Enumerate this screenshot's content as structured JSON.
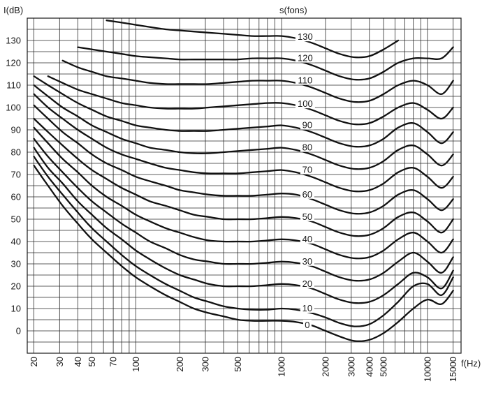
{
  "chart_data": {
    "type": "line",
    "title": "",
    "ylabel": "I(dB)",
    "xlabel": "f(Hz)",
    "series_label": "s(fons)",
    "xscale": "log",
    "xlim": [
      18,
      17000
    ],
    "ylim": [
      -10,
      140
    ],
    "grid": true,
    "yticks": [
      0,
      10,
      20,
      30,
      40,
      50,
      60,
      70,
      80,
      90,
      100,
      110,
      120,
      130
    ],
    "xticks": [
      20,
      30,
      40,
      50,
      70,
      100,
      200,
      300,
      500,
      1000,
      2000,
      3000,
      4000,
      5000,
      10000,
      15000
    ],
    "series": [
      {
        "name": "0",
        "x": [
          20,
          25,
          31.5,
          40,
          50,
          63,
          80,
          100,
          125,
          160,
          200,
          250,
          315,
          400,
          500,
          630,
          800,
          1000,
          1250,
          1600,
          2000,
          2500,
          3150,
          4000,
          5000,
          6300,
          8000,
          10000,
          12500,
          15000
        ],
        "y": [
          74,
          65,
          56,
          48,
          41,
          35,
          29,
          24,
          20,
          16,
          13,
          10,
          8,
          6.5,
          5,
          4.5,
          4.5,
          4.5,
          4,
          2.5,
          0,
          -2.5,
          -4.5,
          -4,
          -1,
          4,
          10,
          14,
          12,
          18
        ]
      },
      {
        "name": "10",
        "x": [
          20,
          25,
          31.5,
          40,
          50,
          63,
          80,
          100,
          125,
          160,
          200,
          250,
          315,
          400,
          500,
          630,
          800,
          1000,
          1250,
          1600,
          2000,
          2500,
          3150,
          4000,
          5000,
          6300,
          8000,
          10000,
          12500,
          15000
        ],
        "y": [
          78,
          69,
          61,
          53,
          46,
          40,
          34,
          29,
          25,
          21,
          18,
          15,
          13,
          11,
          10,
          9.5,
          9.5,
          10,
          9.5,
          8,
          6,
          3.5,
          2,
          3,
          7,
          13,
          20,
          21,
          16,
          24
        ]
      },
      {
        "name": "20",
        "x": [
          20,
          25,
          31.5,
          40,
          50,
          63,
          80,
          100,
          125,
          160,
          200,
          250,
          315,
          400,
          500,
          630,
          800,
          1000,
          1250,
          1600,
          2000,
          2500,
          3150,
          4000,
          5000,
          6300,
          8000,
          10000,
          12500,
          15000
        ],
        "y": [
          82,
          73,
          66,
          58,
          52,
          46,
          41,
          36,
          32,
          28,
          25,
          23,
          21,
          20,
          20,
          20,
          20.5,
          21,
          20.5,
          19,
          16.5,
          14,
          12.5,
          13,
          16,
          21,
          26,
          24,
          19,
          27
        ]
      },
      {
        "name": "30",
        "x": [
          20,
          25,
          31.5,
          40,
          50,
          63,
          80,
          100,
          125,
          160,
          200,
          250,
          315,
          400,
          500,
          630,
          800,
          1000,
          1250,
          1600,
          2000,
          2500,
          3150,
          4000,
          5000,
          6300,
          8000,
          10000,
          12500,
          15000
        ],
        "y": [
          86,
          78,
          71,
          64,
          58,
          53,
          48,
          44,
          40,
          37,
          34,
          32,
          31,
          30,
          30,
          30,
          30.5,
          31,
          30.5,
          29,
          26.5,
          24,
          22.5,
          23,
          26,
          31,
          35,
          31,
          26,
          33
        ]
      },
      {
        "name": "40",
        "x": [
          20,
          25,
          31.5,
          40,
          50,
          63,
          80,
          100,
          125,
          160,
          200,
          250,
          315,
          400,
          500,
          630,
          800,
          1000,
          1250,
          1600,
          2000,
          2500,
          3150,
          4000,
          5000,
          6300,
          8000,
          10000,
          12500,
          15000
        ],
        "y": [
          91,
          84,
          77,
          71,
          65,
          60,
          56,
          52,
          49,
          46,
          44,
          42,
          40.5,
          40,
          40,
          40,
          40.5,
          41,
          40.5,
          39,
          36.5,
          34,
          32.5,
          33,
          36,
          41,
          44,
          40,
          35,
          41
        ]
      },
      {
        "name": "50",
        "x": [
          20,
          25,
          31.5,
          40,
          50,
          63,
          80,
          100,
          125,
          160,
          200,
          250,
          315,
          400,
          500,
          630,
          800,
          1000,
          1250,
          1600,
          2000,
          2500,
          3150,
          4000,
          5000,
          6300,
          8000,
          10000,
          12500,
          15000
        ],
        "y": [
          95,
          89,
          83,
          77,
          72,
          68,
          64,
          61,
          58,
          56,
          54,
          52,
          51,
          50,
          50,
          50,
          50.5,
          51,
          50.5,
          49,
          46.5,
          44,
          42.5,
          43,
          46,
          51,
          53,
          49,
          44,
          50
        ]
      },
      {
        "name": "60",
        "x": [
          20,
          25,
          31.5,
          40,
          50,
          63,
          80,
          100,
          125,
          160,
          200,
          250,
          315,
          400,
          500,
          630,
          800,
          1000,
          1250,
          1600,
          2000,
          2500,
          3150,
          4000,
          5000,
          6300,
          8000,
          10000,
          12500,
          15000
        ],
        "y": [
          101,
          95,
          89,
          84,
          79,
          75,
          72,
          69,
          67,
          65,
          63,
          62,
          61,
          60.5,
          60.5,
          60.5,
          61,
          61.5,
          61,
          59,
          56.5,
          54,
          52.5,
          53,
          56,
          61,
          63,
          59,
          54,
          59
        ]
      },
      {
        "name": "70",
        "x": [
          20,
          25,
          31.5,
          40,
          50,
          63,
          80,
          100,
          125,
          160,
          200,
          250,
          315,
          400,
          500,
          630,
          800,
          1000,
          1250,
          1600,
          2000,
          2500,
          3150,
          4000,
          5000,
          6300,
          8000,
          10000,
          12500,
          15000
        ],
        "y": [
          106,
          100,
          95,
          90,
          86,
          82,
          79,
          77,
          75,
          73,
          72,
          71,
          70.5,
          70.5,
          70.5,
          71,
          71.5,
          72,
          71,
          69,
          66.5,
          64,
          62.5,
          63,
          66,
          71,
          73,
          69,
          64,
          69
        ]
      },
      {
        "name": "80",
        "x": [
          20,
          25,
          31.5,
          40,
          50,
          63,
          80,
          100,
          125,
          160,
          200,
          250,
          315,
          400,
          500,
          630,
          800,
          1000,
          1250,
          1600,
          2000,
          2500,
          3150,
          4000,
          5000,
          6300,
          8000,
          10000,
          12500,
          15000
        ],
        "y": [
          110,
          105,
          100,
          96,
          92,
          89,
          86,
          84,
          82,
          81,
          80,
          79.5,
          79.5,
          80,
          80.5,
          81,
          81.5,
          82,
          81,
          79,
          76.5,
          74,
          72.5,
          73,
          76,
          81,
          83,
          79,
          74,
          79
        ]
      },
      {
        "name": "90",
        "x": [
          20,
          25,
          31.5,
          40,
          50,
          63,
          80,
          100,
          125,
          160,
          200,
          250,
          315,
          400,
          500,
          630,
          800,
          1000,
          1250,
          1600,
          2000,
          2500,
          3150,
          4000,
          5000,
          6300,
          8000,
          10000,
          12500,
          15000
        ],
        "y": [
          114,
          110,
          106,
          102,
          99,
          96,
          94,
          92,
          91,
          90,
          89.5,
          89.5,
          89.5,
          90,
          90.5,
          91,
          91.5,
          92,
          91,
          89,
          86.5,
          84,
          82.5,
          83,
          86,
          91,
          93,
          89,
          84,
          89
        ]
      },
      {
        "name": "100",
        "x": [
          25,
          31.5,
          40,
          50,
          63,
          80,
          100,
          125,
          160,
          200,
          250,
          315,
          400,
          500,
          630,
          800,
          1000,
          1250,
          1600,
          2000,
          2500,
          3150,
          4000,
          5000,
          6300,
          8000,
          10000,
          12500,
          15000
        ],
        "y": [
          114,
          111,
          108,
          106,
          104,
          102,
          101,
          100,
          99.5,
          99.5,
          99.5,
          100,
          100.5,
          101,
          101.5,
          102,
          102,
          101,
          99,
          96.5,
          94,
          92.5,
          93,
          96,
          100,
          102,
          99,
          95,
          100
        ]
      },
      {
        "name": "110",
        "x": [
          31.5,
          40,
          50,
          63,
          80,
          100,
          125,
          160,
          200,
          250,
          315,
          400,
          500,
          630,
          800,
          1000,
          1250,
          1600,
          2000,
          2500,
          3150,
          4000,
          5000,
          6300,
          8000,
          10000,
          12500,
          15000
        ],
        "y": [
          121,
          118,
          116,
          114,
          113,
          112,
          111,
          110.5,
          110.5,
          110.5,
          110.5,
          111,
          111.5,
          112,
          112,
          112,
          111,
          109,
          106.5,
          104,
          102.5,
          103,
          106,
          110,
          112,
          110,
          106,
          112
        ]
      },
      {
        "name": "120",
        "x": [
          40,
          50,
          63,
          80,
          100,
          125,
          160,
          200,
          250,
          315,
          400,
          500,
          630,
          800,
          1000,
          1250,
          1600,
          2000,
          2500,
          3150,
          4000,
          5000,
          6300,
          8000,
          10000,
          12500,
          15000
        ],
        "y": [
          127,
          126,
          125,
          124,
          123,
          122.5,
          122,
          121.5,
          121.5,
          121.5,
          121.5,
          121.5,
          122,
          122,
          122,
          121,
          119,
          116.5,
          114,
          112.5,
          113,
          116,
          120,
          122,
          122,
          122,
          127
        ]
      },
      {
        "name": "130",
        "x": [
          63,
          80,
          100,
          125,
          160,
          200,
          250,
          315,
          400,
          500,
          630,
          800,
          1000,
          1250,
          1600,
          2000,
          2500,
          3150,
          4000,
          5000,
          6300
        ],
        "y": [
          139,
          138,
          137,
          136,
          135,
          134.5,
          134,
          133.5,
          133,
          132.5,
          132,
          132,
          132,
          131,
          129,
          126.5,
          124,
          122.5,
          123,
          126,
          130
        ]
      }
    ],
    "curve_labels": [
      {
        "text": "0",
        "freq": 1500,
        "level": 2.5
      },
      {
        "text": "10",
        "freq": 1500,
        "level": 10
      },
      {
        "text": "20",
        "freq": 1500,
        "level": 21
      },
      {
        "text": "30",
        "freq": 1500,
        "level": 31
      },
      {
        "text": "40",
        "freq": 1500,
        "level": 41
      },
      {
        "text": "50",
        "freq": 1500,
        "level": 51
      },
      {
        "text": "60",
        "freq": 1500,
        "level": 61
      },
      {
        "text": "70",
        "freq": 1500,
        "level": 72
      },
      {
        "text": "80",
        "freq": 1500,
        "level": 82
      },
      {
        "text": "90",
        "freq": 1500,
        "level": 92
      },
      {
        "text": "100",
        "freq": 1450,
        "level": 101.5
      },
      {
        "text": "110",
        "freq": 1450,
        "level": 112
      },
      {
        "text": "120",
        "freq": 1450,
        "level": 122
      },
      {
        "text": "130",
        "freq": 1450,
        "level": 131.5
      }
    ]
  }
}
